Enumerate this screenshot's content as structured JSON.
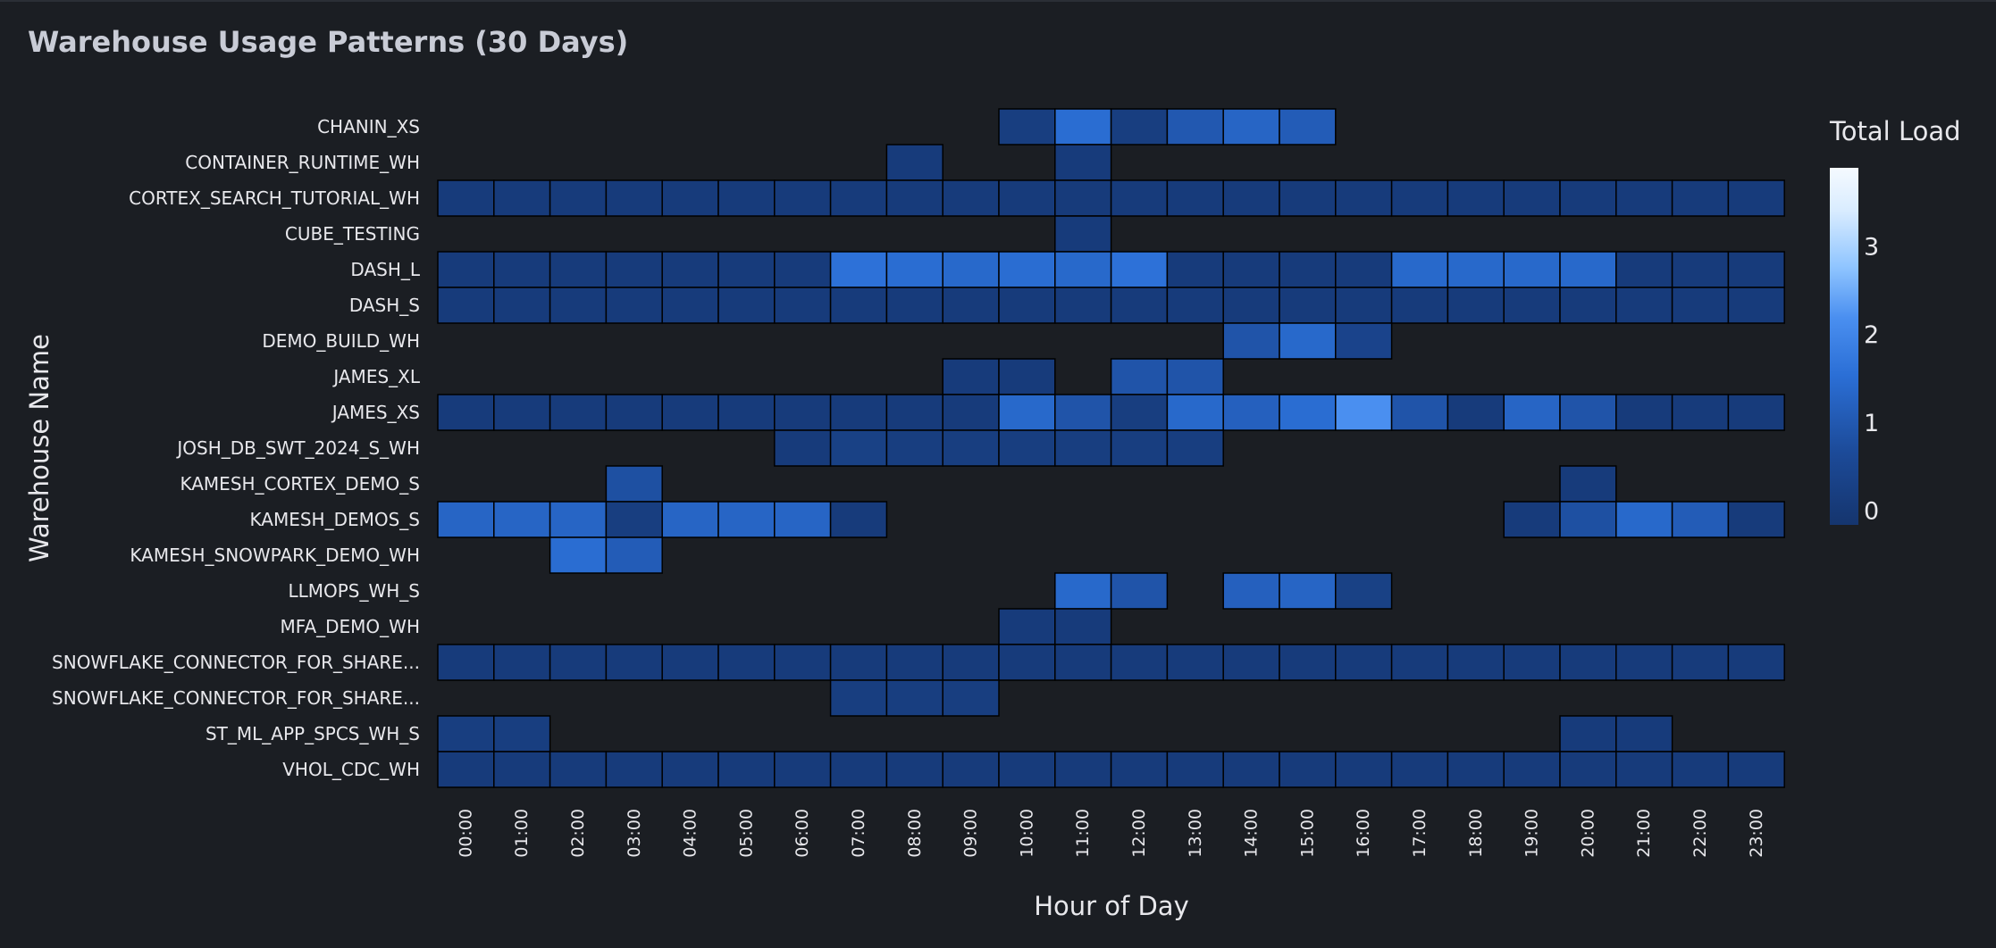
{
  "header": {
    "title": "Warehouse Usage Patterns (30 Days)"
  },
  "chart_data": {
    "type": "heatmap",
    "xlabel": "Hour of Day",
    "ylabel": "Warehouse Name",
    "colorbar_title": "Total Load",
    "colorbar_range": [
      -0.15,
      3.9
    ],
    "colorbar_ticks": [
      0,
      1,
      2,
      3
    ],
    "x": [
      "00:00",
      "01:00",
      "02:00",
      "03:00",
      "04:00",
      "05:00",
      "06:00",
      "07:00",
      "08:00",
      "09:00",
      "10:00",
      "11:00",
      "12:00",
      "13:00",
      "14:00",
      "15:00",
      "16:00",
      "17:00",
      "18:00",
      "19:00",
      "20:00",
      "21:00",
      "22:00",
      "23:00"
    ],
    "y": [
      "CHANIN_XS",
      "CONTAINER_RUNTIME_WH",
      "CORTEX_SEARCH_TUTORIAL_WH",
      "CUBE_TESTING",
      "DASH_L",
      "DASH_S",
      "DEMO_BUILD_WH",
      "JAMES_XL",
      "JAMES_XS",
      "JOSH_DB_SWT_2024_S_WH",
      "KAMESH_CORTEX_DEMO_S",
      "KAMESH_DEMOS_S",
      "KAMESH_SNOWPARK_DEMO_WH",
      "LLMOPS_WH_S",
      "MFA_DEMO_WH",
      "SNOWFLAKE_CONNECTOR_FOR_SHARE...",
      "SNOWFLAKE_CONNECTOR_FOR_SHARE...",
      "ST_ML_APP_SPCS_WH_S",
      "VHOL_CDC_WH"
    ],
    "z": [
      [
        null,
        null,
        null,
        null,
        null,
        null,
        null,
        null,
        null,
        null,
        0.2,
        1.5,
        0.2,
        1.0,
        1.3,
        1.1,
        null,
        null,
        null,
        null,
        null,
        null,
        null,
        null
      ],
      [
        null,
        null,
        null,
        null,
        null,
        null,
        null,
        null,
        0.1,
        null,
        null,
        0.1,
        null,
        null,
        null,
        null,
        null,
        null,
        null,
        null,
        null,
        null,
        null,
        null
      ],
      [
        0.1,
        0.1,
        0.1,
        0.1,
        0.1,
        0.1,
        0.1,
        0.1,
        0.1,
        0.1,
        0.1,
        0.1,
        0.1,
        0.1,
        0.1,
        0.1,
        0.1,
        0.1,
        0.1,
        0.1,
        0.1,
        0.1,
        0.1,
        0.1
      ],
      [
        null,
        null,
        null,
        null,
        null,
        null,
        null,
        null,
        null,
        null,
        null,
        0.1,
        null,
        null,
        null,
        null,
        null,
        null,
        null,
        null,
        null,
        null,
        null,
        null
      ],
      [
        0.1,
        0.1,
        0.1,
        0.1,
        0.1,
        0.1,
        0.1,
        1.6,
        1.5,
        1.4,
        1.5,
        1.4,
        1.6,
        0.1,
        0.1,
        0.1,
        0.1,
        1.4,
        1.4,
        1.4,
        1.4,
        0.1,
        0.1,
        0.1
      ],
      [
        0.1,
        0.1,
        0.1,
        0.1,
        0.1,
        0.1,
        0.1,
        0.1,
        0.1,
        0.1,
        0.1,
        0.1,
        0.1,
        0.1,
        0.1,
        0.1,
        0.1,
        0.1,
        0.1,
        0.1,
        0.1,
        0.1,
        0.1,
        0.1
      ],
      [
        null,
        null,
        null,
        null,
        null,
        null,
        null,
        null,
        null,
        null,
        null,
        null,
        null,
        null,
        0.9,
        1.4,
        0.4,
        null,
        null,
        null,
        null,
        null,
        null,
        null
      ],
      [
        null,
        null,
        null,
        null,
        null,
        null,
        null,
        null,
        null,
        0.1,
        0.1,
        null,
        0.9,
        0.9,
        null,
        null,
        null,
        null,
        null,
        null,
        null,
        null,
        null,
        null
      ],
      [
        0.1,
        0.1,
        0.1,
        0.1,
        0.1,
        0.1,
        0.1,
        0.1,
        0.1,
        0.1,
        1.4,
        0.9,
        0.2,
        1.4,
        1.2,
        1.5,
        2.2,
        0.9,
        0.1,
        1.3,
        0.9,
        0.1,
        0.1,
        0.1
      ],
      [
        null,
        null,
        null,
        null,
        null,
        null,
        0.1,
        0.3,
        0.2,
        0.2,
        0.2,
        0.2,
        0.2,
        0.2,
        null,
        null,
        null,
        null,
        null,
        null,
        null,
        null,
        null,
        null
      ],
      [
        null,
        null,
        null,
        0.8,
        null,
        null,
        null,
        null,
        null,
        null,
        null,
        null,
        null,
        null,
        null,
        null,
        null,
        null,
        null,
        null,
        0.1,
        null,
        null,
        null
      ],
      [
        1.3,
        1.3,
        1.3,
        0.2,
        1.3,
        1.3,
        1.3,
        0.1,
        null,
        null,
        null,
        null,
        null,
        null,
        null,
        null,
        null,
        null,
        null,
        0.1,
        0.8,
        1.4,
        1.1,
        0.1
      ],
      [
        null,
        null,
        1.5,
        1.1,
        null,
        null,
        null,
        null,
        null,
        null,
        null,
        null,
        null,
        null,
        null,
        null,
        null,
        null,
        null,
        null,
        null,
        null,
        null,
        null
      ],
      [
        null,
        null,
        null,
        null,
        null,
        null,
        null,
        null,
        null,
        null,
        null,
        1.4,
        0.9,
        null,
        1.2,
        1.3,
        0.3,
        null,
        null,
        null,
        null,
        null,
        null,
        null
      ],
      [
        null,
        null,
        null,
        null,
        null,
        null,
        null,
        null,
        null,
        null,
        0.1,
        0.1,
        null,
        null,
        null,
        null,
        null,
        null,
        null,
        null,
        null,
        null,
        null,
        null
      ],
      [
        0.1,
        0.1,
        0.1,
        0.1,
        0.1,
        0.1,
        0.1,
        0.1,
        0.1,
        0.1,
        0.1,
        0.1,
        0.1,
        0.1,
        0.1,
        0.1,
        0.1,
        0.1,
        0.1,
        0.1,
        0.1,
        0.1,
        0.1,
        0.1
      ],
      [
        null,
        null,
        null,
        null,
        null,
        null,
        null,
        0.2,
        0.2,
        0.2,
        null,
        null,
        null,
        null,
        null,
        null,
        null,
        null,
        null,
        null,
        null,
        null,
        null,
        null
      ],
      [
        0.2,
        0.2,
        null,
        null,
        null,
        null,
        null,
        null,
        null,
        null,
        null,
        null,
        null,
        null,
        null,
        null,
        null,
        null,
        null,
        null,
        0.1,
        0.1,
        null,
        null
      ],
      [
        0.1,
        0.1,
        0.1,
        0.1,
        0.1,
        0.1,
        0.1,
        0.1,
        0.1,
        0.1,
        0.1,
        0.1,
        0.1,
        0.1,
        0.1,
        0.1,
        0.1,
        0.1,
        0.1,
        0.1,
        0.1,
        0.1,
        0.1,
        0.1
      ]
    ],
    "colorscale": [
      "#15356e",
      "#1c4a98",
      "#2b6fd6",
      "#4a8ff0",
      "#8ec4ff",
      "#d9ecff",
      "#f5faff"
    ]
  }
}
